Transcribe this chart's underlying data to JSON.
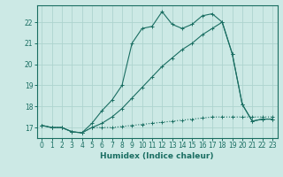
{
  "xlabel": "Humidex (Indice chaleur)",
  "background_color": "#cce9e5",
  "grid_color": "#aed4cf",
  "line_color": "#1a6e62",
  "xlim": [
    -0.5,
    23.5
  ],
  "ylim": [
    16.5,
    22.8
  ],
  "xticks": [
    0,
    1,
    2,
    3,
    4,
    5,
    6,
    7,
    8,
    9,
    10,
    11,
    12,
    13,
    14,
    15,
    16,
    17,
    18,
    19,
    20,
    21,
    22,
    23
  ],
  "yticks": [
    17,
    18,
    19,
    20,
    21,
    22
  ],
  "line1_x": [
    0,
    1,
    2,
    3,
    4,
    5,
    6,
    7,
    8,
    9,
    10,
    11,
    12,
    13,
    14,
    15,
    16,
    17,
    18,
    19,
    20,
    21,
    22,
    23
  ],
  "line1_y": [
    17.1,
    17.0,
    17.0,
    16.8,
    16.75,
    17.0,
    17.0,
    17.0,
    17.05,
    17.1,
    17.15,
    17.2,
    17.25,
    17.3,
    17.35,
    17.4,
    17.45,
    17.5,
    17.5,
    17.5,
    17.5,
    17.5,
    17.5,
    17.5
  ],
  "line2_x": [
    0,
    1,
    2,
    3,
    4,
    5,
    6,
    7,
    8,
    9,
    10,
    11,
    12,
    13,
    14,
    15,
    16,
    17,
    18,
    19,
    20,
    21,
    22,
    23
  ],
  "line2_y": [
    17.1,
    17.0,
    17.0,
    16.8,
    16.75,
    17.2,
    17.8,
    18.3,
    19.0,
    21.0,
    21.7,
    21.8,
    22.5,
    21.9,
    21.7,
    21.9,
    22.3,
    22.4,
    22.0,
    20.5,
    18.1,
    17.3,
    17.4,
    17.4
  ],
  "line3_x": [
    0,
    1,
    2,
    3,
    4,
    5,
    6,
    7,
    8,
    9,
    10,
    11,
    12,
    13,
    14,
    15,
    16,
    17,
    18,
    19,
    20,
    21,
    22,
    23
  ],
  "line3_y": [
    17.1,
    17.0,
    17.0,
    16.8,
    16.75,
    17.0,
    17.2,
    17.5,
    17.9,
    18.4,
    18.9,
    19.4,
    19.9,
    20.3,
    20.7,
    21.0,
    21.4,
    21.7,
    22.0,
    20.5,
    18.1,
    17.3,
    17.4,
    17.4
  ]
}
